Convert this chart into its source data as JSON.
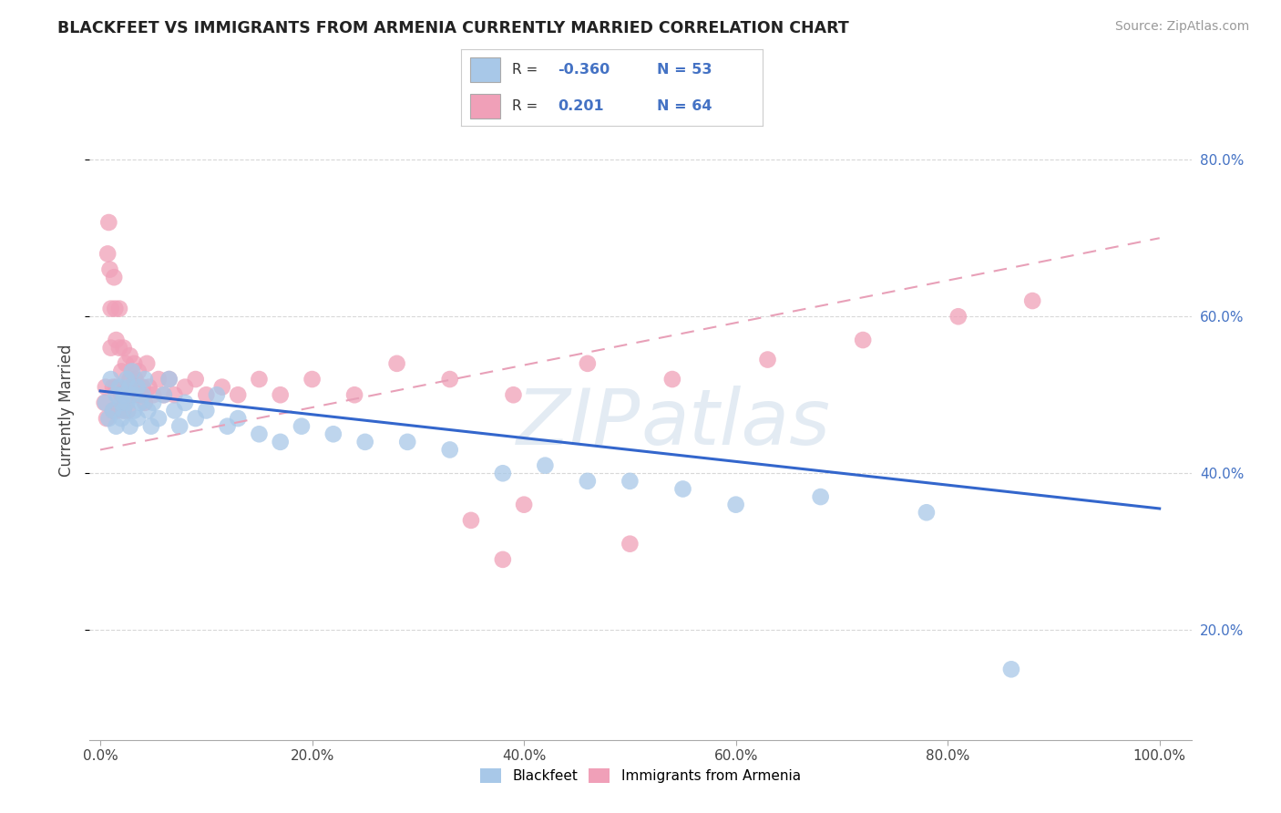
{
  "title": "BLACKFEET VS IMMIGRANTS FROM ARMENIA CURRENTLY MARRIED CORRELATION CHART",
  "source": "Source: ZipAtlas.com",
  "ylabel": "Currently Married",
  "legend_R": [
    -0.36,
    0.201
  ],
  "legend_N": [
    53,
    64
  ],
  "blackfeet_color": "#a8c8e8",
  "armenia_color": "#f0a0b8",
  "trendline_blackfeet_color": "#3366cc",
  "trendline_armenia_color": "#e87898",
  "trendline_armenia_dash_color": "#e8a0b8",
  "watermark_color": "#c8d8e8",
  "background_color": "#ffffff",
  "grid_color": "#d8d8d8",
  "legend_box_color": "#cccccc",
  "right_tick_color": "#4472c4",
  "title_color": "#222222",
  "source_color": "#999999",
  "ylabel_color": "#444444",
  "x_tick_color": "#444444",
  "x_range": [
    -0.01,
    1.03
  ],
  "y_range": [
    0.06,
    0.9
  ],
  "x_tick_vals": [
    0.0,
    0.2,
    0.4,
    0.6,
    0.8,
    1.0
  ],
  "y_tick_vals": [
    0.2,
    0.4,
    0.6,
    0.8
  ],
  "blackfeet_x": [
    0.005,
    0.008,
    0.01,
    0.012,
    0.015,
    0.015,
    0.018,
    0.02,
    0.02,
    0.022,
    0.022,
    0.025,
    0.025,
    0.028,
    0.028,
    0.03,
    0.03,
    0.032,
    0.035,
    0.035,
    0.038,
    0.04,
    0.042,
    0.045,
    0.048,
    0.05,
    0.055,
    0.06,
    0.065,
    0.07,
    0.075,
    0.08,
    0.09,
    0.1,
    0.11,
    0.12,
    0.13,
    0.15,
    0.17,
    0.19,
    0.22,
    0.25,
    0.29,
    0.33,
    0.38,
    0.42,
    0.46,
    0.5,
    0.55,
    0.6,
    0.68,
    0.78,
    0.86
  ],
  "blackfeet_y": [
    0.49,
    0.47,
    0.52,
    0.48,
    0.5,
    0.46,
    0.51,
    0.49,
    0.47,
    0.5,
    0.48,
    0.52,
    0.49,
    0.51,
    0.46,
    0.5,
    0.53,
    0.48,
    0.51,
    0.47,
    0.49,
    0.5,
    0.52,
    0.48,
    0.46,
    0.49,
    0.47,
    0.5,
    0.52,
    0.48,
    0.46,
    0.49,
    0.47,
    0.48,
    0.5,
    0.46,
    0.47,
    0.45,
    0.44,
    0.46,
    0.45,
    0.44,
    0.44,
    0.43,
    0.4,
    0.41,
    0.39,
    0.39,
    0.38,
    0.36,
    0.37,
    0.35,
    0.15
  ],
  "armenia_x": [
    0.004,
    0.005,
    0.006,
    0.007,
    0.008,
    0.009,
    0.01,
    0.01,
    0.012,
    0.012,
    0.013,
    0.014,
    0.015,
    0.015,
    0.016,
    0.017,
    0.018,
    0.018,
    0.02,
    0.02,
    0.022,
    0.022,
    0.024,
    0.025,
    0.026,
    0.028,
    0.028,
    0.03,
    0.032,
    0.033,
    0.035,
    0.036,
    0.038,
    0.04,
    0.042,
    0.044,
    0.046,
    0.05,
    0.055,
    0.06,
    0.065,
    0.07,
    0.08,
    0.09,
    0.1,
    0.115,
    0.13,
    0.15,
    0.17,
    0.2,
    0.24,
    0.28,
    0.33,
    0.39,
    0.46,
    0.54,
    0.63,
    0.72,
    0.81,
    0.88,
    0.5,
    0.4,
    0.38,
    0.35
  ],
  "armenia_y": [
    0.49,
    0.51,
    0.47,
    0.68,
    0.72,
    0.66,
    0.61,
    0.56,
    0.51,
    0.48,
    0.65,
    0.61,
    0.57,
    0.51,
    0.5,
    0.48,
    0.61,
    0.56,
    0.53,
    0.5,
    0.48,
    0.56,
    0.54,
    0.51,
    0.48,
    0.55,
    0.52,
    0.5,
    0.54,
    0.52,
    0.5,
    0.53,
    0.5,
    0.51,
    0.49,
    0.54,
    0.51,
    0.5,
    0.52,
    0.5,
    0.52,
    0.5,
    0.51,
    0.52,
    0.5,
    0.51,
    0.5,
    0.52,
    0.5,
    0.52,
    0.5,
    0.54,
    0.52,
    0.5,
    0.54,
    0.52,
    0.545,
    0.57,
    0.6,
    0.62,
    0.31,
    0.36,
    0.29,
    0.34
  ]
}
